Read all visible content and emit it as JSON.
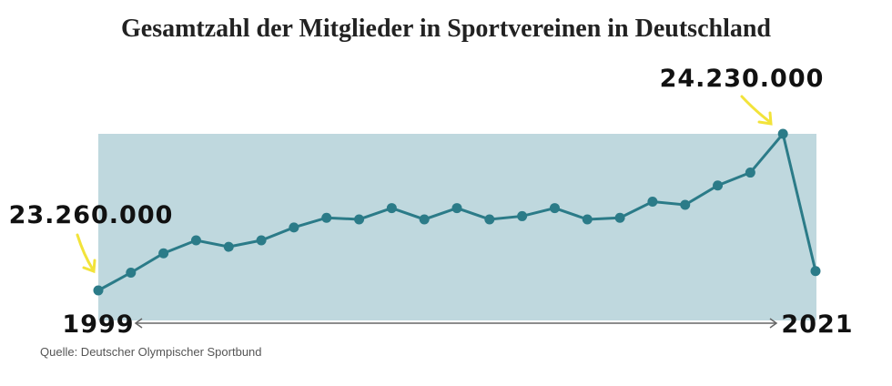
{
  "chart_data": {
    "type": "line",
    "title": "Gesamtzahl der Mitglieder in Sportvereinen in Deutschland",
    "source": "Quelle: Deutscher Olympischer Sportbund",
    "categories": [
      "1999",
      null,
      null,
      null,
      null,
      null,
      null,
      null,
      null,
      null,
      null,
      null,
      null,
      null,
      null,
      null,
      null,
      null,
      null,
      null,
      null,
      null,
      "2021"
    ],
    "values": [
      23260000,
      23370000,
      23490000,
      23570000,
      23530000,
      23570000,
      23650000,
      23710000,
      23700000,
      23770000,
      23700000,
      23770000,
      23700000,
      23720000,
      23770000,
      23700000,
      23710000,
      23810000,
      23790000,
      23910000,
      23990000,
      24230000,
      23380000
    ],
    "value_labels": [
      "23.260.000",
      null,
      null,
      null,
      null,
      null,
      null,
      null,
      null,
      null,
      null,
      null,
      null,
      null,
      null,
      null,
      null,
      null,
      null,
      null,
      null,
      "24.230.000",
      null
    ],
    "color": "#2b7b88"
  }
}
